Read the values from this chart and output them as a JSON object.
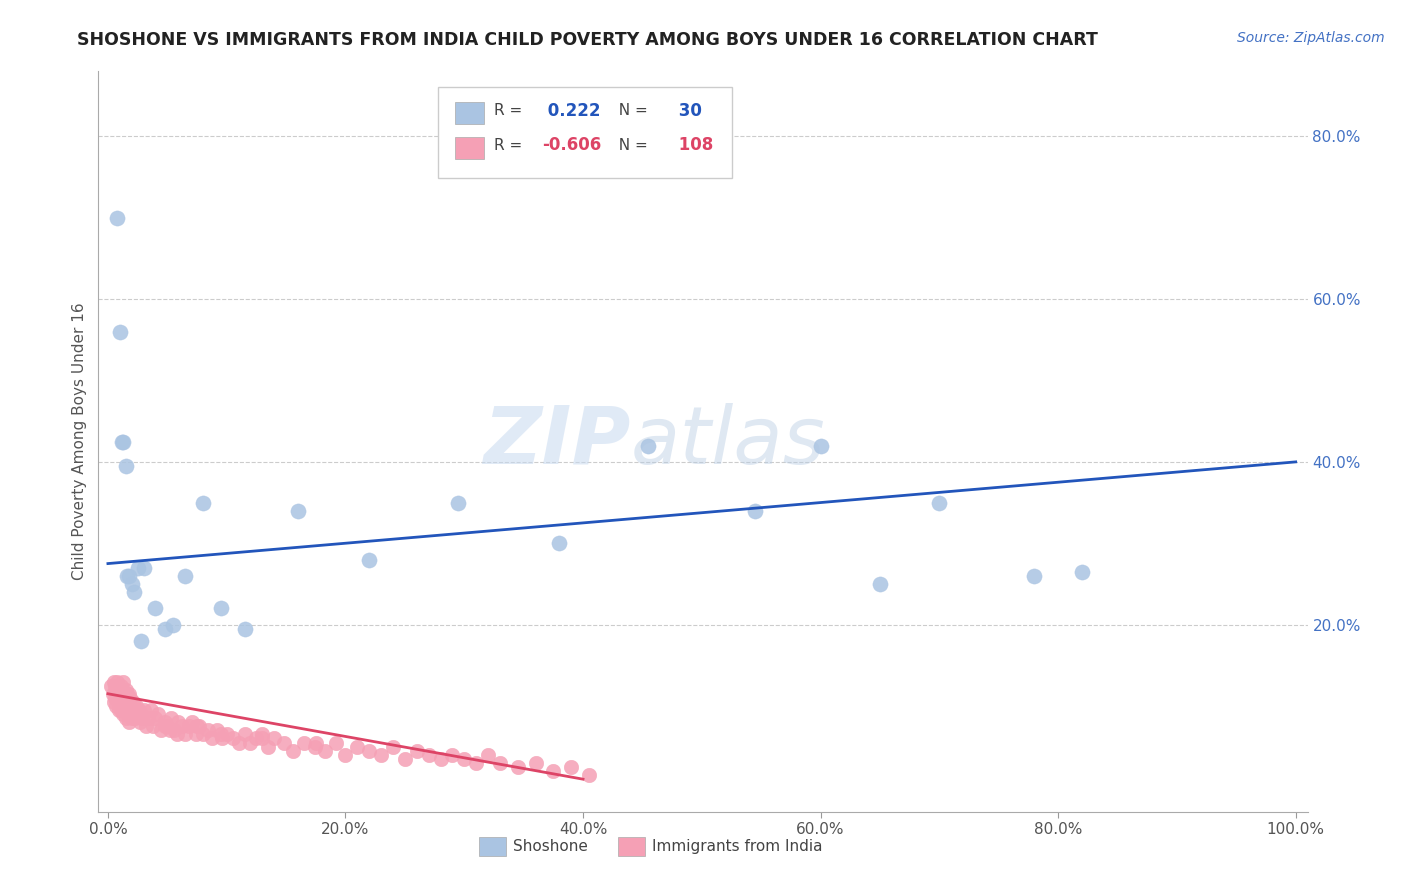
{
  "title": "SHOSHONE VS IMMIGRANTS FROM INDIA CHILD POVERTY AMONG BOYS UNDER 16 CORRELATION CHART",
  "source": "Source: ZipAtlas.com",
  "ylabel": "Child Poverty Among Boys Under 16",
  "r_shoshone": 0.222,
  "n_shoshone": 30,
  "r_india": -0.606,
  "n_india": 108,
  "shoshone_color": "#aac4e2",
  "india_color": "#f5a0b5",
  "shoshone_line_color": "#2255bb",
  "india_line_color": "#dd4466",
  "watermark_color": "#dce8f5",
  "shoshone_x": [
    0.008,
    0.01,
    0.012,
    0.013,
    0.015,
    0.016,
    0.018,
    0.02,
    0.022,
    0.025,
    0.028,
    0.03,
    0.04,
    0.048,
    0.055,
    0.065,
    0.08,
    0.095,
    0.115,
    0.16,
    0.22,
    0.295,
    0.38,
    0.455,
    0.545,
    0.6,
    0.65,
    0.7,
    0.78,
    0.82
  ],
  "shoshone_y": [
    0.7,
    0.56,
    0.425,
    0.425,
    0.395,
    0.26,
    0.26,
    0.25,
    0.24,
    0.27,
    0.18,
    0.27,
    0.22,
    0.195,
    0.2,
    0.26,
    0.35,
    0.22,
    0.195,
    0.34,
    0.28,
    0.35,
    0.3,
    0.42,
    0.34,
    0.42,
    0.25,
    0.35,
    0.26,
    0.265
  ],
  "india_x": [
    0.003,
    0.004,
    0.005,
    0.005,
    0.006,
    0.006,
    0.007,
    0.007,
    0.008,
    0.008,
    0.009,
    0.009,
    0.01,
    0.01,
    0.011,
    0.011,
    0.012,
    0.012,
    0.013,
    0.013,
    0.014,
    0.014,
    0.015,
    0.015,
    0.016,
    0.016,
    0.017,
    0.017,
    0.018,
    0.018,
    0.019,
    0.019,
    0.02,
    0.02,
    0.021,
    0.022,
    0.023,
    0.024,
    0.025,
    0.026,
    0.027,
    0.028,
    0.029,
    0.03,
    0.032,
    0.034,
    0.036,
    0.038,
    0.04,
    0.042,
    0.045,
    0.048,
    0.05,
    0.053,
    0.056,
    0.059,
    0.062,
    0.065,
    0.068,
    0.071,
    0.074,
    0.077,
    0.08,
    0.084,
    0.088,
    0.092,
    0.096,
    0.1,
    0.105,
    0.11,
    0.115,
    0.12,
    0.125,
    0.13,
    0.135,
    0.14,
    0.148,
    0.156,
    0.165,
    0.174,
    0.183,
    0.192,
    0.2,
    0.21,
    0.22,
    0.23,
    0.24,
    0.25,
    0.26,
    0.27,
    0.28,
    0.29,
    0.3,
    0.31,
    0.32,
    0.33,
    0.345,
    0.36,
    0.375,
    0.39,
    0.405,
    0.048,
    0.052,
    0.058,
    0.075,
    0.095,
    0.13,
    0.175
  ],
  "india_y": [
    0.125,
    0.115,
    0.13,
    0.105,
    0.125,
    0.11,
    0.12,
    0.1,
    0.13,
    0.115,
    0.105,
    0.095,
    0.12,
    0.11,
    0.125,
    0.095,
    0.115,
    0.1,
    0.13,
    0.09,
    0.11,
    0.1,
    0.12,
    0.085,
    0.105,
    0.115,
    0.09,
    0.1,
    0.115,
    0.08,
    0.1,
    0.11,
    0.095,
    0.085,
    0.105,
    0.09,
    0.085,
    0.1,
    0.09,
    0.095,
    0.08,
    0.09,
    0.085,
    0.095,
    0.075,
    0.085,
    0.095,
    0.075,
    0.085,
    0.09,
    0.07,
    0.08,
    0.075,
    0.085,
    0.07,
    0.08,
    0.075,
    0.065,
    0.075,
    0.08,
    0.065,
    0.075,
    0.065,
    0.07,
    0.06,
    0.07,
    0.06,
    0.065,
    0.06,
    0.055,
    0.065,
    0.055,
    0.06,
    0.065,
    0.05,
    0.06,
    0.055,
    0.045,
    0.055,
    0.05,
    0.045,
    0.055,
    0.04,
    0.05,
    0.045,
    0.04,
    0.05,
    0.035,
    0.045,
    0.04,
    0.035,
    0.04,
    0.035,
    0.03,
    0.04,
    0.03,
    0.025,
    0.03,
    0.02,
    0.025,
    0.015,
    0.075,
    0.07,
    0.065,
    0.075,
    0.065,
    0.06,
    0.055
  ],
  "xlim": [
    -0.008,
    1.01
  ],
  "ylim": [
    -0.03,
    0.88
  ],
  "xtick_vals": [
    0.0,
    0.2,
    0.4,
    0.6,
    0.8,
    1.0
  ],
  "xtick_labels": [
    "0.0%",
    "20.0%",
    "40.0%",
    "60.0%",
    "80.0%",
    "100.0%"
  ],
  "right_ytick_vals": [
    0.2,
    0.4,
    0.6,
    0.8
  ],
  "right_ytick_labels": [
    "20.0%",
    "40.0%",
    "60.0%",
    "80.0%"
  ],
  "grid_lines": [
    0.2,
    0.4,
    0.6,
    0.8
  ]
}
